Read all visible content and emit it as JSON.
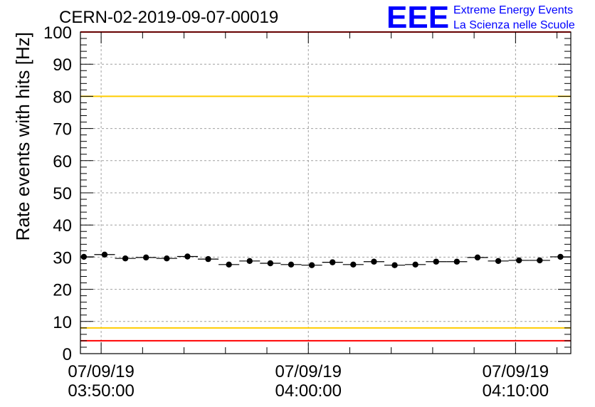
{
  "chart_data": {
    "type": "scatter",
    "title": "CERN-02-2019-09-07-00019",
    "ylabel": "Rate events with hits [Hz]",
    "xlabel": "",
    "ylim": [
      0,
      100
    ],
    "yticks": [
      0,
      10,
      20,
      30,
      40,
      50,
      60,
      70,
      80,
      90,
      100
    ],
    "xlim": [
      "07/09/19 03:49:00",
      "07/09/19 04:12:40"
    ],
    "xticks": [
      {
        "date": "07/09/19",
        "time": "03:50:00"
      },
      {
        "date": "07/09/19",
        "time": "04:00:00"
      },
      {
        "date": "07/09/19",
        "time": "04:10:00"
      }
    ],
    "grid": true,
    "series": [
      {
        "marker": "circle",
        "color": "#000000",
        "x": [
          "03:49:10",
          "03:50:10",
          "03:51:10",
          "03:52:10",
          "03:53:10",
          "03:54:10",
          "03:55:10",
          "03:56:10",
          "03:57:10",
          "03:58:10",
          "03:59:10",
          "04:00:10",
          "04:01:10",
          "04:02:10",
          "04:03:10",
          "04:04:10",
          "04:05:10",
          "04:06:10",
          "04:07:10",
          "04:08:10",
          "04:09:10",
          "04:10:10",
          "04:11:10",
          "04:12:10"
        ],
        "y": [
          30.1,
          30.8,
          29.6,
          29.9,
          29.6,
          30.2,
          29.4,
          27.7,
          28.8,
          28.1,
          27.7,
          27.5,
          28.4,
          27.7,
          28.6,
          27.5,
          27.7,
          28.6,
          28.6,
          29.9,
          28.8,
          29.0,
          29.0,
          30.1
        ]
      }
    ],
    "threshold_lines": [
      {
        "y": 4,
        "color": "#ff0000"
      },
      {
        "y": 8,
        "color": "#ffcc00"
      },
      {
        "y": 80,
        "color": "#ffcc00"
      },
      {
        "y": 100,
        "color": "#ff0000"
      }
    ]
  },
  "logo": {
    "mark": "EEE",
    "line1": "Extreme Energy Events",
    "line2": "La Scienza nelle Scuole",
    "color": "#0000ff"
  }
}
